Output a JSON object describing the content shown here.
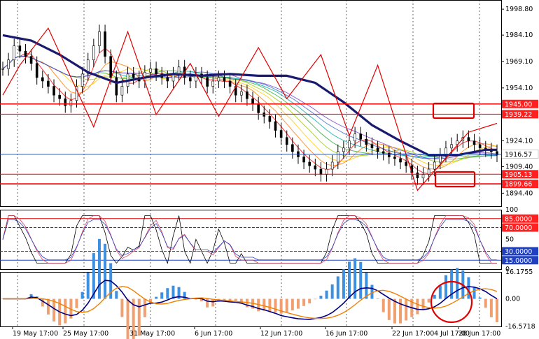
{
  "chart_data": {
    "type": "line",
    "symbol_hint": "gold price chart with MA ribbon, oscillator and MACD-style histogram",
    "colors": {
      "candle": "#000000",
      "zigzag": "#e00000",
      "ma_main": "#1a1a6e",
      "level_line": "#ff0000",
      "price_line": "#2040a0",
      "dashed_blue": "#2040c0",
      "hist_pos": "#3d8fe0",
      "hist_neg": "#f0a070",
      "macd_line": "#000080",
      "signal_line": "#f08000",
      "annotation_red": "#e00000"
    },
    "x_labels": [
      "19 May 17:00",
      "25 May 17:00",
      "31 May 17:00",
      "6 Jun 17:00",
      "12 Jun 17:00",
      "16 Jun 17:00",
      "22 Jun 17:00",
      "28 Jun 17:00",
      "4 Jul 17:00"
    ],
    "price_panel": {
      "y_ticks": [
        "1998.80",
        "1984.10",
        "1969.10",
        "1954.10",
        "1924.10",
        "1909.40",
        "1894.40"
      ],
      "ylim": [
        1887,
        2004
      ],
      "marked_levels": [
        {
          "label": "1945.00",
          "value": 1945.0
        },
        {
          "label": "1939.22",
          "value": 1939.22
        },
        {
          "label": "1905.13",
          "value": 1905.13
        },
        {
          "label": "1899.66",
          "value": 1899.66
        }
      ],
      "current_price": {
        "label": "1916.57",
        "value": 1916.57
      },
      "zigzag": [
        [
          0,
          1950
        ],
        [
          3,
          1967
        ],
        [
          8,
          1988
        ],
        [
          16,
          1932
        ],
        [
          22,
          1986
        ],
        [
          27,
          1939
        ],
        [
          33,
          1968
        ],
        [
          38,
          1938
        ],
        [
          45,
          1977
        ],
        [
          50,
          1948
        ],
        [
          56,
          1973
        ],
        [
          61,
          1927
        ],
        [
          66,
          1967
        ],
        [
          73,
          1896
        ],
        [
          82,
          1929
        ],
        [
          87,
          1934
        ]
      ],
      "ma_main": [
        [
          0,
          1984
        ],
        [
          5,
          1981
        ],
        [
          10,
          1973
        ],
        [
          15,
          1963
        ],
        [
          20,
          1957
        ],
        [
          25,
          1960
        ],
        [
          30,
          1962
        ],
        [
          35,
          1961
        ],
        [
          40,
          1962
        ],
        [
          45,
          1961
        ],
        [
          50,
          1961
        ],
        [
          55,
          1957
        ],
        [
          60,
          1946
        ],
        [
          65,
          1933
        ],
        [
          70,
          1924
        ],
        [
          75,
          1916
        ],
        [
          80,
          1916
        ],
        [
          85,
          1919
        ],
        [
          87,
          1919
        ]
      ],
      "close_series": [
        1965,
        1970,
        1978,
        1975,
        1972,
        1968,
        1960,
        1958,
        1955,
        1950,
        1948,
        1944,
        1947,
        1955,
        1962,
        1970,
        1978,
        1986,
        1972,
        1960,
        1950,
        1955,
        1962,
        1960,
        1958,
        1963,
        1965,
        1962,
        1960,
        1958,
        1962,
        1966,
        1960,
        1958,
        1962,
        1960,
        1955,
        1958,
        1960,
        1958,
        1955,
        1950,
        1952,
        1948,
        1945,
        1940,
        1938,
        1935,
        1930,
        1926,
        1922,
        1918,
        1915,
        1912,
        1910,
        1908,
        1905,
        1908,
        1912,
        1918,
        1920,
        1924,
        1928,
        1925,
        1922,
        1920,
        1918,
        1917,
        1915,
        1914,
        1912,
        1910,
        1906,
        1903,
        1905,
        1908,
        1912,
        1916,
        1920,
        1922,
        1924,
        1926,
        1924,
        1922,
        1920,
        1919,
        1918,
        1916
      ]
    },
    "oscillator_panel": {
      "y_ticks": [
        "100",
        "50",
        "0"
      ],
      "ylim": [
        0,
        100
      ],
      "levels": [
        {
          "label": "85.0000",
          "value": 85
        },
        {
          "label": "70.0000",
          "value": 70
        },
        {
          "label": "30.0000",
          "value": 30
        },
        {
          "label": "15.0000",
          "value": 15
        }
      ]
    },
    "histogram_panel": {
      "y_ticks": [
        "16.1755",
        "0.00",
        "-16.5718"
      ],
      "ylim": [
        -16.5718,
        16.1755
      ]
    },
    "annotations": [
      "rectangle near 1945.00/1939.22",
      "rectangle near 1905.13/1899.66",
      "circle on last histogram bars"
    ]
  }
}
